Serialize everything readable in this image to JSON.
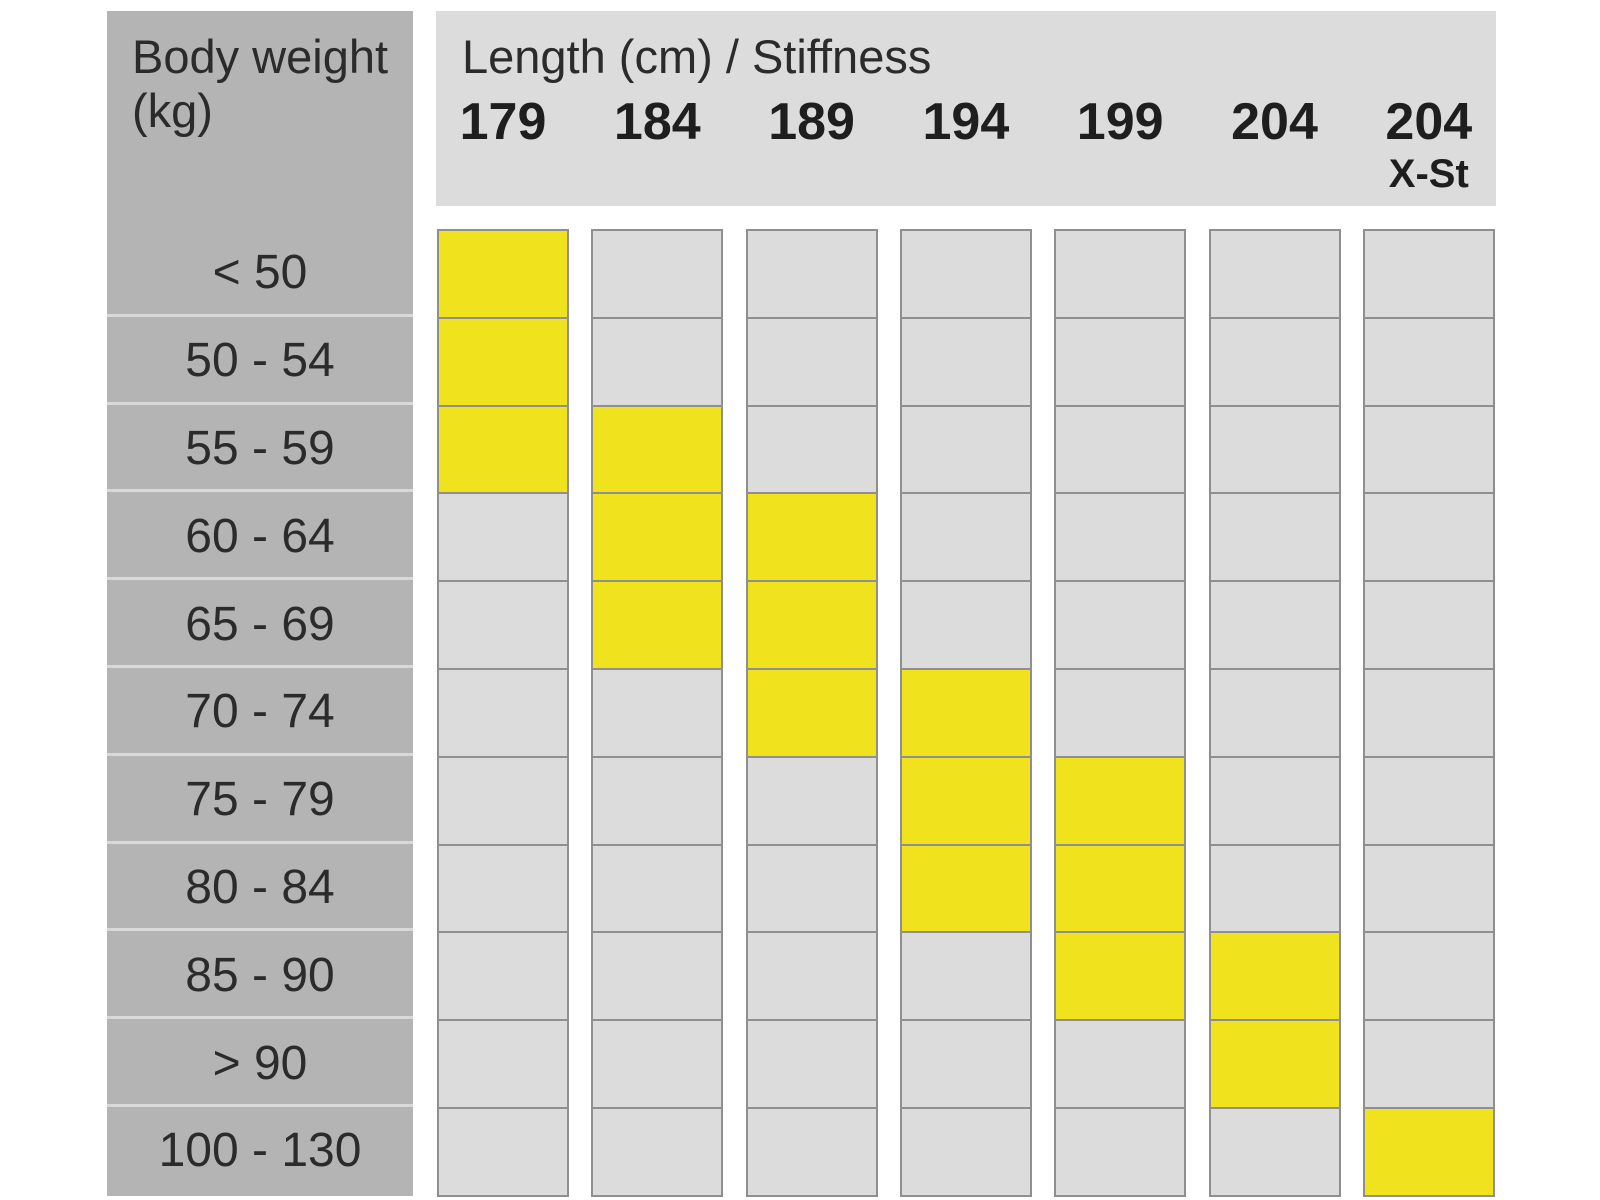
{
  "chart_data": {
    "type": "table",
    "row_header": "Body weight (kg)",
    "column_header": "Length (cm) / Stiffness",
    "columns": [
      {
        "length": "179",
        "stiffness": ""
      },
      {
        "length": "184",
        "stiffness": ""
      },
      {
        "length": "189",
        "stiffness": ""
      },
      {
        "length": "194",
        "stiffness": ""
      },
      {
        "length": "199",
        "stiffness": ""
      },
      {
        "length": "204",
        "stiffness": ""
      },
      {
        "length": "204",
        "stiffness": "X-St"
      }
    ],
    "rows": [
      "< 50",
      "50 - 54",
      "55 - 59",
      "60 - 64",
      "65 - 69",
      "70 - 74",
      "75 - 79",
      "80 - 84",
      "85 - 90",
      "> 90",
      "100 - 130"
    ],
    "recommended": [
      [
        1,
        0,
        0,
        0,
        0,
        0,
        0
      ],
      [
        1,
        0,
        0,
        0,
        0,
        0,
        0
      ],
      [
        1,
        1,
        0,
        0,
        0,
        0,
        0
      ],
      [
        0,
        1,
        1,
        0,
        0,
        0,
        0
      ],
      [
        0,
        1,
        1,
        0,
        0,
        0,
        0
      ],
      [
        0,
        0,
        1,
        1,
        0,
        0,
        0
      ],
      [
        0,
        0,
        0,
        1,
        1,
        0,
        0
      ],
      [
        0,
        0,
        0,
        1,
        1,
        0,
        0
      ],
      [
        0,
        0,
        0,
        0,
        1,
        1,
        0
      ],
      [
        0,
        0,
        0,
        0,
        0,
        1,
        0
      ],
      [
        0,
        0,
        0,
        0,
        0,
        0,
        1
      ]
    ],
    "colors": {
      "highlight": "#f0e21c",
      "cell": "#dcdcdc",
      "weight_panel": "#b4b4b4",
      "border": "#8f8f8f"
    }
  }
}
